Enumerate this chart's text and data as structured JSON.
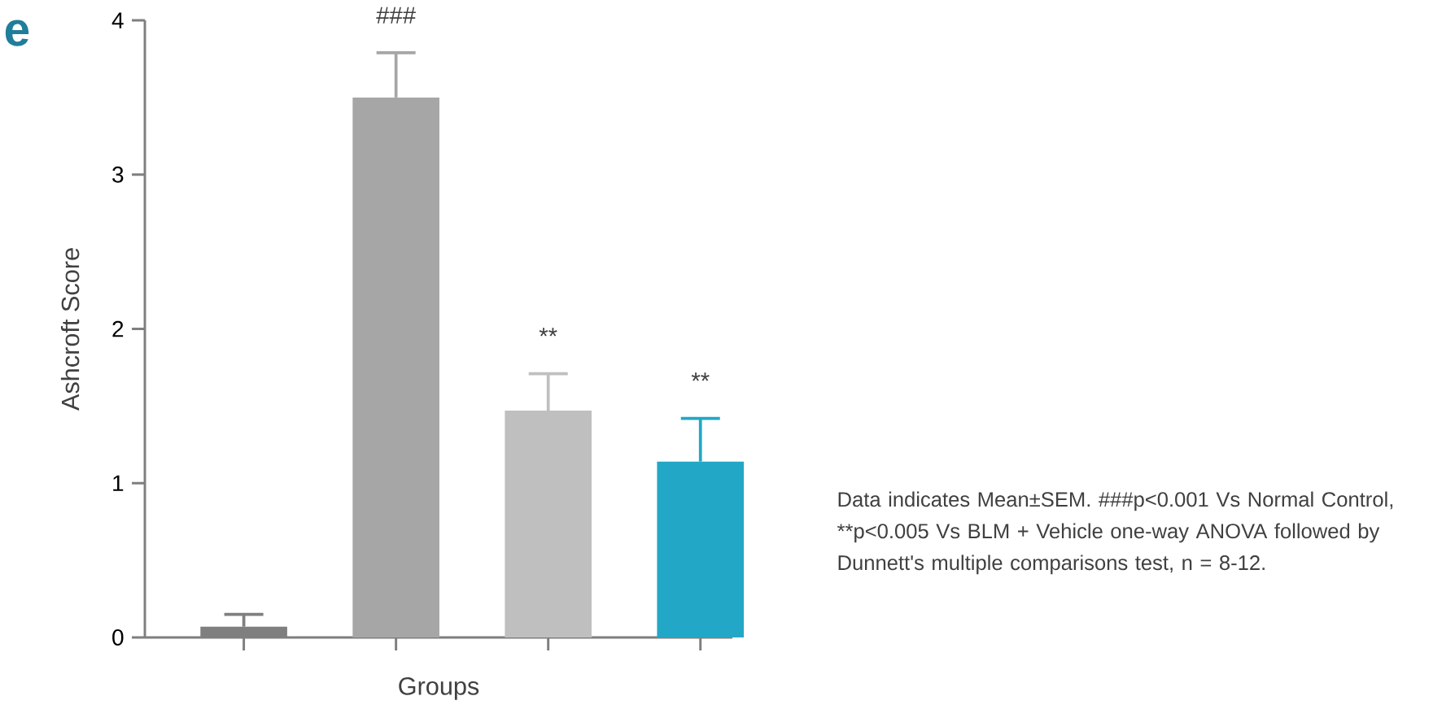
{
  "chart_data": {
    "type": "bar",
    "categories": [
      null,
      null,
      null,
      null
    ],
    "values": [
      0.07,
      3.5,
      1.47,
      1.14
    ],
    "errors": [
      [
        0.07,
        0.15
      ],
      [
        3.5,
        3.79
      ],
      [
        1.47,
        1.71
      ],
      [
        1.14,
        1.42
      ]
    ],
    "colors": [
      "#7f7f7f",
      "#a6a6a6",
      "#bfbfbf",
      "#22a7c6"
    ],
    "xlabel": "Groups",
    "ylabel": "Ashcroft Score",
    "ylim": [
      0,
      4
    ],
    "yticks": [
      0,
      1,
      2,
      3,
      4
    ],
    "annotations": [
      "e",
      "Data indicates Mean±SEM. ###p<0.001 Vs Normal Control, **p<0.005 Vs BLM + Vehicle one-way ANOVA followed by Dunnett's multiple comparisons test, n = 8-12.",
      "###",
      "**",
      "**"
    ]
  }
}
